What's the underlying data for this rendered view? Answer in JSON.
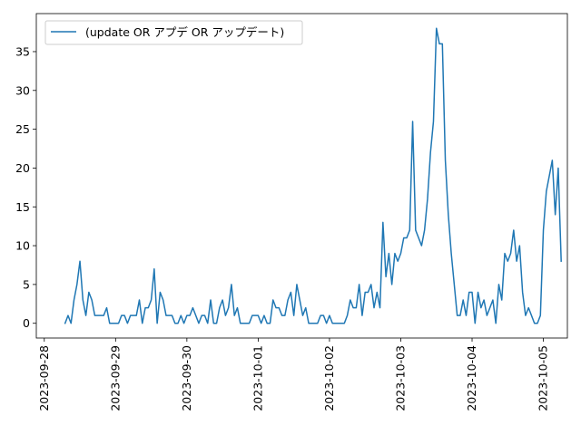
{
  "chart_data": {
    "type": "line",
    "title": "",
    "xlabel": "",
    "ylabel": "",
    "x_ticks": [
      "2023-09-28",
      "2023-09-29",
      "2023-09-30",
      "2023-10-01",
      "2023-10-02",
      "2023-10-03",
      "2023-10-04",
      "2023-10-05"
    ],
    "y_ticks": [
      0,
      5,
      10,
      15,
      20,
      25,
      30,
      35
    ],
    "xlim": [
      "2023-09-27T21:19",
      "2023-10-05T08:05"
    ],
    "ylim": [
      -1.9,
      39.9
    ],
    "grid": false,
    "legend_position": "top-left",
    "colors": {
      "series": "#1f77b4"
    },
    "x_start": "2023-09-28T07:00",
    "x_step_hours": 1,
    "series": [
      {
        "name": "(update OR アプデ OR アップデート)",
        "values": [
          0,
          1,
          0,
          3,
          5,
          8,
          3,
          1,
          4,
          3,
          1,
          1,
          1,
          1,
          2,
          0,
          0,
          0,
          0,
          1,
          1,
          0,
          1,
          1,
          1,
          3,
          0,
          2,
          2,
          3,
          7,
          0,
          4,
          3,
          1,
          1,
          1,
          0,
          0,
          1,
          0,
          1,
          1,
          2,
          1,
          0,
          1,
          1,
          0,
          3,
          0,
          0,
          2,
          3,
          1,
          2,
          5,
          1,
          2,
          0,
          0,
          0,
          0,
          1,
          1,
          1,
          0,
          1,
          0,
          0,
          3,
          2,
          2,
          1,
          1,
          3,
          4,
          1,
          5,
          3,
          1,
          2,
          0,
          0,
          0,
          0,
          1,
          1,
          0,
          1,
          0,
          0,
          0,
          0,
          0,
          1,
          3,
          2,
          2,
          5,
          1,
          4,
          4,
          5,
          2,
          4,
          2,
          13,
          6,
          9,
          5,
          9,
          8,
          9,
          11,
          11,
          12,
          26,
          12,
          11,
          10,
          12,
          16,
          22,
          26,
          38,
          36,
          36,
          21,
          14,
          9,
          5,
          1,
          1,
          3,
          1,
          4,
          4,
          0,
          4,
          2,
          3,
          1,
          2,
          3,
          0,
          5,
          3,
          9,
          8,
          9,
          12,
          8,
          10,
          4,
          1,
          2,
          1,
          0,
          0,
          1,
          12,
          17,
          19,
          21,
          14,
          20,
          8
        ]
      }
    ]
  }
}
